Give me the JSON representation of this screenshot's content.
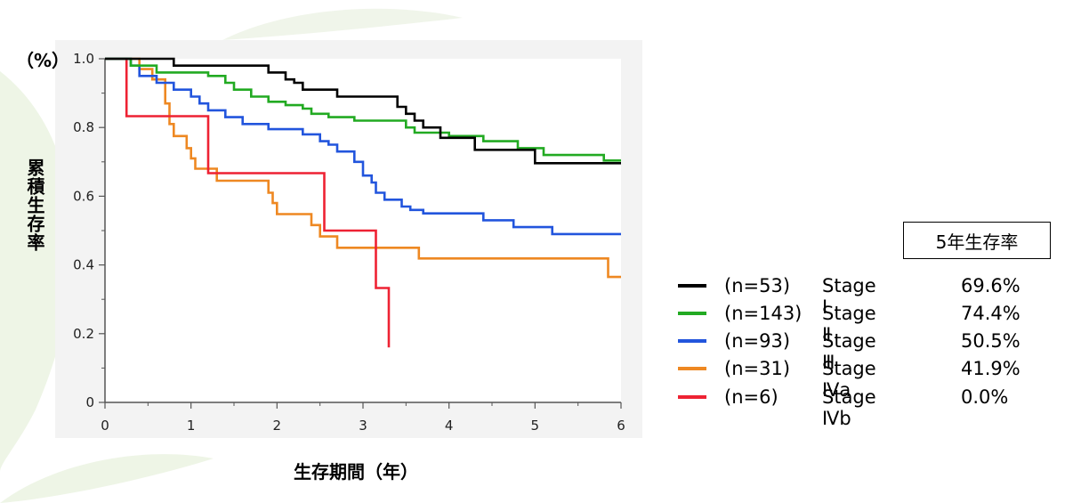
{
  "chart_data": {
    "type": "line",
    "title": "",
    "unit_label": "（%）",
    "ylabel": "累積生存率",
    "xlabel": "生存期間（年）",
    "xlim": [
      0,
      6
    ],
    "ylim": [
      0,
      1.0
    ],
    "x_ticks": [
      0,
      1,
      2,
      3,
      4,
      5,
      6
    ],
    "y_ticks": [
      0,
      0.2,
      0.4,
      0.6,
      0.8,
      1.0
    ],
    "y_tick_labels": [
      "0",
      "0.2",
      "0.4",
      "0.6",
      "0.8",
      "1.0"
    ],
    "grid": false,
    "legend_placement": "right",
    "rate_header": "5年生存率",
    "series": [
      {
        "n_label": "(n=53)",
        "stage": "Stage Ⅰ",
        "rate": "69.6%",
        "color": "#000000",
        "points": [
          [
            0,
            1.0
          ],
          [
            0.8,
            1.0
          ],
          [
            0.8,
            0.98
          ],
          [
            1.9,
            0.98
          ],
          [
            1.9,
            0.96
          ],
          [
            2.1,
            0.96
          ],
          [
            2.1,
            0.94
          ],
          [
            2.2,
            0.94
          ],
          [
            2.2,
            0.93
          ],
          [
            2.3,
            0.93
          ],
          [
            2.3,
            0.91
          ],
          [
            2.7,
            0.91
          ],
          [
            2.7,
            0.89
          ],
          [
            3.4,
            0.89
          ],
          [
            3.4,
            0.86
          ],
          [
            3.5,
            0.86
          ],
          [
            3.5,
            0.84
          ],
          [
            3.6,
            0.84
          ],
          [
            3.6,
            0.82
          ],
          [
            3.7,
            0.82
          ],
          [
            3.7,
            0.8
          ],
          [
            3.9,
            0.8
          ],
          [
            3.9,
            0.77
          ],
          [
            4.3,
            0.77
          ],
          [
            4.3,
            0.735
          ],
          [
            5.0,
            0.735
          ],
          [
            5.0,
            0.696
          ],
          [
            6.0,
            0.696
          ]
        ]
      },
      {
        "n_label": "(n=143)",
        "stage": "Stage Ⅱ",
        "rate": "74.4%",
        "color": "#22aa22",
        "points": [
          [
            0,
            1.0
          ],
          [
            0.3,
            1.0
          ],
          [
            0.3,
            0.98
          ],
          [
            0.6,
            0.98
          ],
          [
            0.6,
            0.96
          ],
          [
            1.2,
            0.96
          ],
          [
            1.2,
            0.95
          ],
          [
            1.4,
            0.95
          ],
          [
            1.4,
            0.93
          ],
          [
            1.5,
            0.93
          ],
          [
            1.5,
            0.91
          ],
          [
            1.7,
            0.91
          ],
          [
            1.7,
            0.89
          ],
          [
            1.9,
            0.89
          ],
          [
            1.9,
            0.875
          ],
          [
            2.1,
            0.875
          ],
          [
            2.1,
            0.865
          ],
          [
            2.3,
            0.865
          ],
          [
            2.3,
            0.855
          ],
          [
            2.4,
            0.855
          ],
          [
            2.4,
            0.84
          ],
          [
            2.6,
            0.84
          ],
          [
            2.6,
            0.83
          ],
          [
            2.9,
            0.83
          ],
          [
            2.9,
            0.82
          ],
          [
            3.5,
            0.82
          ],
          [
            3.5,
            0.8
          ],
          [
            3.6,
            0.8
          ],
          [
            3.6,
            0.785
          ],
          [
            4.0,
            0.785
          ],
          [
            4.0,
            0.775
          ],
          [
            4.4,
            0.775
          ],
          [
            4.4,
            0.76
          ],
          [
            4.8,
            0.76
          ],
          [
            4.8,
            0.74
          ],
          [
            5.1,
            0.74
          ],
          [
            5.1,
            0.72
          ],
          [
            5.8,
            0.72
          ],
          [
            5.8,
            0.704
          ],
          [
            6.0,
            0.704
          ]
        ]
      },
      {
        "n_label": "(n=93)",
        "stage": "Stage Ⅲ",
        "rate": "50.5%",
        "color": "#2255dd",
        "points": [
          [
            0,
            1.0
          ],
          [
            0.3,
            1.0
          ],
          [
            0.3,
            0.98
          ],
          [
            0.4,
            0.98
          ],
          [
            0.4,
            0.95
          ],
          [
            0.6,
            0.95
          ],
          [
            0.6,
            0.93
          ],
          [
            0.8,
            0.93
          ],
          [
            0.8,
            0.91
          ],
          [
            1.0,
            0.91
          ],
          [
            1.0,
            0.89
          ],
          [
            1.1,
            0.89
          ],
          [
            1.1,
            0.87
          ],
          [
            1.2,
            0.87
          ],
          [
            1.2,
            0.85
          ],
          [
            1.4,
            0.85
          ],
          [
            1.4,
            0.83
          ],
          [
            1.6,
            0.83
          ],
          [
            1.6,
            0.81
          ],
          [
            1.9,
            0.81
          ],
          [
            1.9,
            0.795
          ],
          [
            2.3,
            0.795
          ],
          [
            2.3,
            0.78
          ],
          [
            2.5,
            0.78
          ],
          [
            2.5,
            0.76
          ],
          [
            2.6,
            0.76
          ],
          [
            2.6,
            0.75
          ],
          [
            2.7,
            0.75
          ],
          [
            2.7,
            0.73
          ],
          [
            2.9,
            0.73
          ],
          [
            2.9,
            0.7
          ],
          [
            3.0,
            0.7
          ],
          [
            3.0,
            0.66
          ],
          [
            3.1,
            0.66
          ],
          [
            3.1,
            0.64
          ],
          [
            3.15,
            0.64
          ],
          [
            3.15,
            0.61
          ],
          [
            3.25,
            0.61
          ],
          [
            3.25,
            0.59
          ],
          [
            3.45,
            0.59
          ],
          [
            3.45,
            0.57
          ],
          [
            3.55,
            0.57
          ],
          [
            3.55,
            0.56
          ],
          [
            3.7,
            0.56
          ],
          [
            3.7,
            0.55
          ],
          [
            4.4,
            0.55
          ],
          [
            4.4,
            0.53
          ],
          [
            4.75,
            0.53
          ],
          [
            4.75,
            0.51
          ],
          [
            5.2,
            0.51
          ],
          [
            5.2,
            0.49
          ],
          [
            6.0,
            0.49
          ]
        ]
      },
      {
        "n_label": "(n=31)",
        "stage": "Stage Ⅳa",
        "rate": "41.9%",
        "color": "#ee8822",
        "points": [
          [
            0,
            1.0
          ],
          [
            0.4,
            1.0
          ],
          [
            0.4,
            0.97
          ],
          [
            0.55,
            0.97
          ],
          [
            0.55,
            0.94
          ],
          [
            0.7,
            0.94
          ],
          [
            0.7,
            0.87
          ],
          [
            0.75,
            0.87
          ],
          [
            0.75,
            0.81
          ],
          [
            0.8,
            0.81
          ],
          [
            0.8,
            0.775
          ],
          [
            0.95,
            0.775
          ],
          [
            0.95,
            0.74
          ],
          [
            1.0,
            0.74
          ],
          [
            1.0,
            0.71
          ],
          [
            1.05,
            0.71
          ],
          [
            1.05,
            0.68
          ],
          [
            1.3,
            0.68
          ],
          [
            1.3,
            0.645
          ],
          [
            1.9,
            0.645
          ],
          [
            1.9,
            0.61
          ],
          [
            1.95,
            0.61
          ],
          [
            1.95,
            0.58
          ],
          [
            2.0,
            0.58
          ],
          [
            2.0,
            0.548
          ],
          [
            2.4,
            0.548
          ],
          [
            2.4,
            0.516
          ],
          [
            2.5,
            0.516
          ],
          [
            2.5,
            0.483
          ],
          [
            2.7,
            0.483
          ],
          [
            2.7,
            0.45
          ],
          [
            3.65,
            0.45
          ],
          [
            3.65,
            0.419
          ],
          [
            5.85,
            0.419
          ],
          [
            5.85,
            0.365
          ],
          [
            6.0,
            0.365
          ]
        ]
      },
      {
        "n_label": "(n=6)",
        "stage": "Stage Ⅳb",
        "rate": "0.0%",
        "color": "#ee2233",
        "points": [
          [
            0,
            1.0
          ],
          [
            0.25,
            1.0
          ],
          [
            0.25,
            0.833
          ],
          [
            1.2,
            0.833
          ],
          [
            1.2,
            0.667
          ],
          [
            2.55,
            0.667
          ],
          [
            2.55,
            0.5
          ],
          [
            3.15,
            0.5
          ],
          [
            3.15,
            0.333
          ],
          [
            3.3,
            0.333
          ],
          [
            3.3,
            0.16
          ]
        ]
      }
    ]
  }
}
